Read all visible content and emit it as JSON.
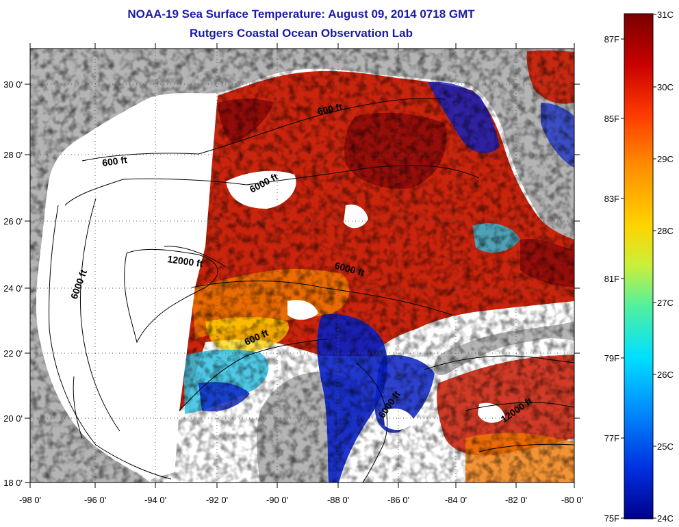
{
  "header": {
    "title": "NOAA-19 Sea Surface Temperature:  August 09, 2014 0718 GMT",
    "subtitle": "Rutgers Coastal Ocean Observation Lab"
  },
  "axes": {
    "x_ticks": [
      "-98 0'",
      "-96 0'",
      "-94 0'",
      "-92 0'",
      "-90 0'",
      "-88 0'",
      "-86 0'",
      "-84 0'",
      "-82 0'",
      "-80 0'"
    ],
    "y_ticks": [
      "30 0'",
      "28 0'",
      "26 0'",
      "24 0'",
      "22 0'",
      "20 0'",
      "18 0'"
    ]
  },
  "contours": {
    "labels": [
      "600 ft",
      "600 ft",
      "6000 ft",
      "12000 ft",
      "6000 ft",
      "6000 ft",
      "600 ft",
      "6000 ft",
      "12000 ft"
    ]
  },
  "colorbar": {
    "celsius_labels": [
      "31C",
      "30C",
      "29C",
      "28C",
      "27C",
      "26C",
      "25C",
      "24C"
    ],
    "fahrenheit_labels": [
      "87F",
      "85F",
      "83F",
      "81F",
      "79F",
      "77F",
      "75F"
    ],
    "colors": [
      "#7a0000",
      "#c80000",
      "#ff3a00",
      "#ff8c00",
      "#ffd400",
      "#c8f03c",
      "#50f0a0",
      "#00e0ff",
      "#0090ff",
      "#0030e0",
      "#00008c"
    ]
  },
  "map_colors": {
    "land": "#b4b4b4",
    "no_data": "#ffffff",
    "warm": "#c81800",
    "hot": "#8c0a0a",
    "mid": "#f07800",
    "cool": "#30c0e0",
    "cold": "#0820c8"
  }
}
